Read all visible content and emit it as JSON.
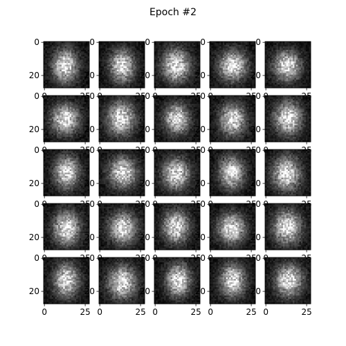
{
  "figure": {
    "title": "Epoch #2"
  },
  "chart_data": {
    "type": "heatmap",
    "title": "Epoch #2",
    "grid": {
      "rows": 5,
      "cols": 5
    },
    "image_size": [
      28,
      28
    ],
    "colormap": "gray",
    "xlim": [
      -0.5,
      27.5
    ],
    "ylim": [
      27.5,
      -0.5
    ],
    "x_ticks": [
      0,
      25
    ],
    "y_ticks": [
      0,
      20
    ],
    "x_tick_labels": [
      "0",
      "25"
    ],
    "y_tick_labels": [
      "0",
      "20"
    ]
  }
}
